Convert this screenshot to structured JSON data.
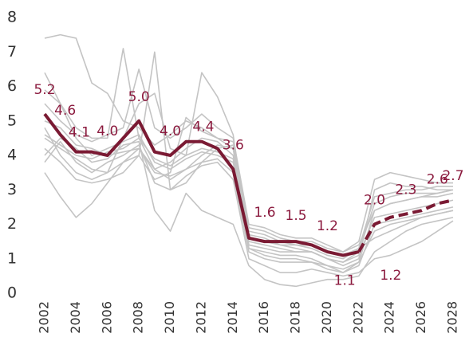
{
  "chart_data": {
    "type": "line",
    "x": [
      2002,
      2003,
      2004,
      2005,
      2006,
      2007,
      2008,
      2009,
      2010,
      2011,
      2012,
      2013,
      2014,
      2015,
      2016,
      2017,
      2018,
      2019,
      2020,
      2021,
      2022,
      2023,
      2024,
      2025,
      2026,
      2027,
      2028
    ],
    "xlim": [
      2002,
      2028
    ],
    "xticks": [
      2002,
      2004,
      2006,
      2008,
      2010,
      2012,
      2014,
      2016,
      2018,
      2020,
      2022,
      2024,
      2026,
      2028
    ],
    "ylim": [
      0,
      8
    ],
    "yticks": [
      0,
      1,
      2,
      3,
      4,
      5,
      6,
      7,
      8
    ],
    "series": [
      {
        "color": "#c4c4c4",
        "values": [
          7.4,
          7.5,
          7.4,
          6.1,
          5.8,
          5.0,
          4.8,
          4.3,
          4.6,
          5.0,
          4.8,
          4.5,
          4.2,
          1.9,
          1.8,
          1.6,
          1.5,
          1.5,
          1.3,
          1.2,
          1.5,
          3.3,
          3.5,
          3.4,
          3.3,
          3.2,
          3.2
        ]
      },
      {
        "color": "#c4c4c4",
        "values": [
          6.4,
          5.5,
          4.8,
          4.5,
          4.5,
          7.1,
          4.5,
          3.6,
          3.8,
          4.2,
          4.5,
          4.4,
          4.0,
          1.6,
          1.5,
          1.4,
          1.3,
          1.2,
          1.0,
          0.8,
          1.0,
          3.0,
          3.2,
          3.1,
          3.1,
          3.0,
          3.0
        ]
      },
      {
        "color": "#c4c4c4",
        "values": [
          4.5,
          4.2,
          3.9,
          3.6,
          3.5,
          4.5,
          5.5,
          5.8,
          4.2,
          4.0,
          6.4,
          5.7,
          4.6,
          1.4,
          1.3,
          1.2,
          1.2,
          1.2,
          1.0,
          0.9,
          1.2,
          2.6,
          2.8,
          2.9,
          2.9,
          2.9,
          3.0
        ]
      },
      {
        "color": "#c4c4c4",
        "values": [
          3.5,
          2.8,
          2.2,
          2.6,
          3.2,
          3.8,
          4.2,
          3.6,
          3.3,
          3.6,
          4.0,
          4.3,
          4.2,
          1.3,
          1.2,
          1.1,
          1.1,
          1.0,
          0.8,
          0.6,
          0.9,
          2.4,
          2.6,
          2.7,
          2.8,
          2.8,
          2.9
        ]
      },
      {
        "color": "#c4c4c4",
        "values": [
          4.8,
          4.0,
          3.5,
          3.3,
          3.5,
          3.8,
          4.0,
          7.0,
          3.0,
          3.2,
          3.8,
          4.2,
          4.3,
          1.7,
          1.6,
          1.4,
          1.4,
          1.3,
          1.1,
          1.0,
          1.3,
          2.8,
          2.9,
          3.0,
          3.0,
          3.1,
          3.1
        ]
      },
      {
        "color": "#c4c4c4",
        "values": [
          4.0,
          4.5,
          4.2,
          3.8,
          3.9,
          4.3,
          4.4,
          2.4,
          1.8,
          2.9,
          2.4,
          2.2,
          2.0,
          0.8,
          0.4,
          0.25,
          0.2,
          0.3,
          0.4,
          0.4,
          0.5,
          1.2,
          1.5,
          1.8,
          2.0,
          2.1,
          2.2
        ]
      },
      {
        "color": "#c4c4c4",
        "values": [
          5.9,
          5.5,
          4.5,
          4.0,
          4.2,
          4.4,
          4.6,
          3.8,
          3.6,
          3.9,
          4.1,
          4.0,
          3.8,
          1.5,
          1.4,
          1.3,
          1.2,
          1.2,
          1.0,
          0.9,
          1.1,
          2.2,
          2.3,
          2.4,
          2.5,
          2.6,
          2.7
        ]
      },
      {
        "color": "#c4c4c4",
        "values": [
          5.0,
          4.8,
          4.3,
          4.2,
          4.0,
          4.1,
          4.2,
          3.5,
          3.4,
          3.6,
          3.8,
          3.9,
          3.5,
          1.2,
          1.0,
          0.9,
          0.9,
          0.9,
          0.7,
          0.6,
          0.8,
          2.0,
          2.1,
          2.2,
          2.3,
          2.4,
          2.5
        ]
      },
      {
        "color": "#c4c4c4",
        "values": [
          4.2,
          3.8,
          3.3,
          3.2,
          3.3,
          3.5,
          4.0,
          3.3,
          3.5,
          5.1,
          4.7,
          4.5,
          4.4,
          1.8,
          1.7,
          1.5,
          1.4,
          1.4,
          1.2,
          1.1,
          1.3,
          1.6,
          1.8,
          2.0,
          2.2,
          2.3,
          2.4
        ]
      },
      {
        "color": "#c4c4c4",
        "values": [
          3.8,
          4.4,
          3.8,
          3.5,
          3.8,
          4.0,
          4.3,
          3.2,
          3.0,
          3.4,
          3.7,
          3.8,
          3.3,
          1.0,
          0.8,
          0.6,
          0.6,
          0.7,
          0.6,
          0.5,
          0.6,
          1.0,
          1.1,
          1.3,
          1.5,
          1.8,
          2.1
        ]
      },
      {
        "color": "#c4c4c4",
        "values": [
          5.5,
          5.0,
          4.6,
          4.4,
          4.6,
          4.8,
          6.5,
          4.8,
          4.5,
          4.8,
          5.2,
          4.8,
          4.5,
          2.0,
          1.9,
          1.7,
          1.6,
          1.6,
          1.4,
          1.2,
          1.4,
          2.4,
          2.6,
          2.7,
          2.8,
          2.9,
          3.0
        ]
      },
      {
        "color": "#c4c4c4",
        "values": [
          4.6,
          4.3,
          4.0,
          3.9,
          4.1,
          4.2,
          4.5,
          3.9,
          3.7,
          4.0,
          4.2,
          4.1,
          3.9,
          1.3,
          1.1,
          1.0,
          1.0,
          0.9,
          0.8,
          0.7,
          0.9,
          1.8,
          2.0,
          2.1,
          2.2,
          2.3,
          2.4
        ]
      },
      {
        "color": "#7a1a33",
        "width": 4,
        "values": [
          5.2,
          4.6,
          4.1,
          4.1,
          4.0,
          4.5,
          5.0,
          4.1,
          4.0,
          4.4,
          4.4,
          4.2,
          3.6,
          1.6,
          1.5,
          1.5,
          1.5,
          1.4,
          1.2,
          1.1,
          1.2,
          null,
          null,
          null,
          null,
          null,
          null
        ],
        "value_labels": [
          "5.2",
          "4.6",
          "4.1",
          null,
          "4.0",
          null,
          "5.0",
          null,
          "4.0",
          null,
          "4.4",
          null,
          "3.6",
          "1.6",
          null,
          null,
          "1.5",
          null,
          "1.2",
          "1.1",
          "1.2",
          null,
          null,
          null,
          null,
          null,
          null
        ]
      },
      {
        "color": "#7a1a33",
        "width": 4,
        "dashed": true,
        "values": [
          null,
          null,
          null,
          null,
          null,
          null,
          null,
          null,
          null,
          null,
          null,
          null,
          null,
          null,
          null,
          null,
          null,
          null,
          null,
          null,
          1.2,
          2.0,
          2.2,
          2.3,
          2.4,
          2.6,
          2.7
        ],
        "value_labels": [
          null,
          null,
          null,
          null,
          null,
          null,
          null,
          null,
          null,
          null,
          null,
          null,
          null,
          null,
          null,
          null,
          null,
          null,
          null,
          null,
          null,
          "2.0",
          null,
          "2.3",
          null,
          "2.6",
          "2.7"
        ]
      }
    ]
  }
}
